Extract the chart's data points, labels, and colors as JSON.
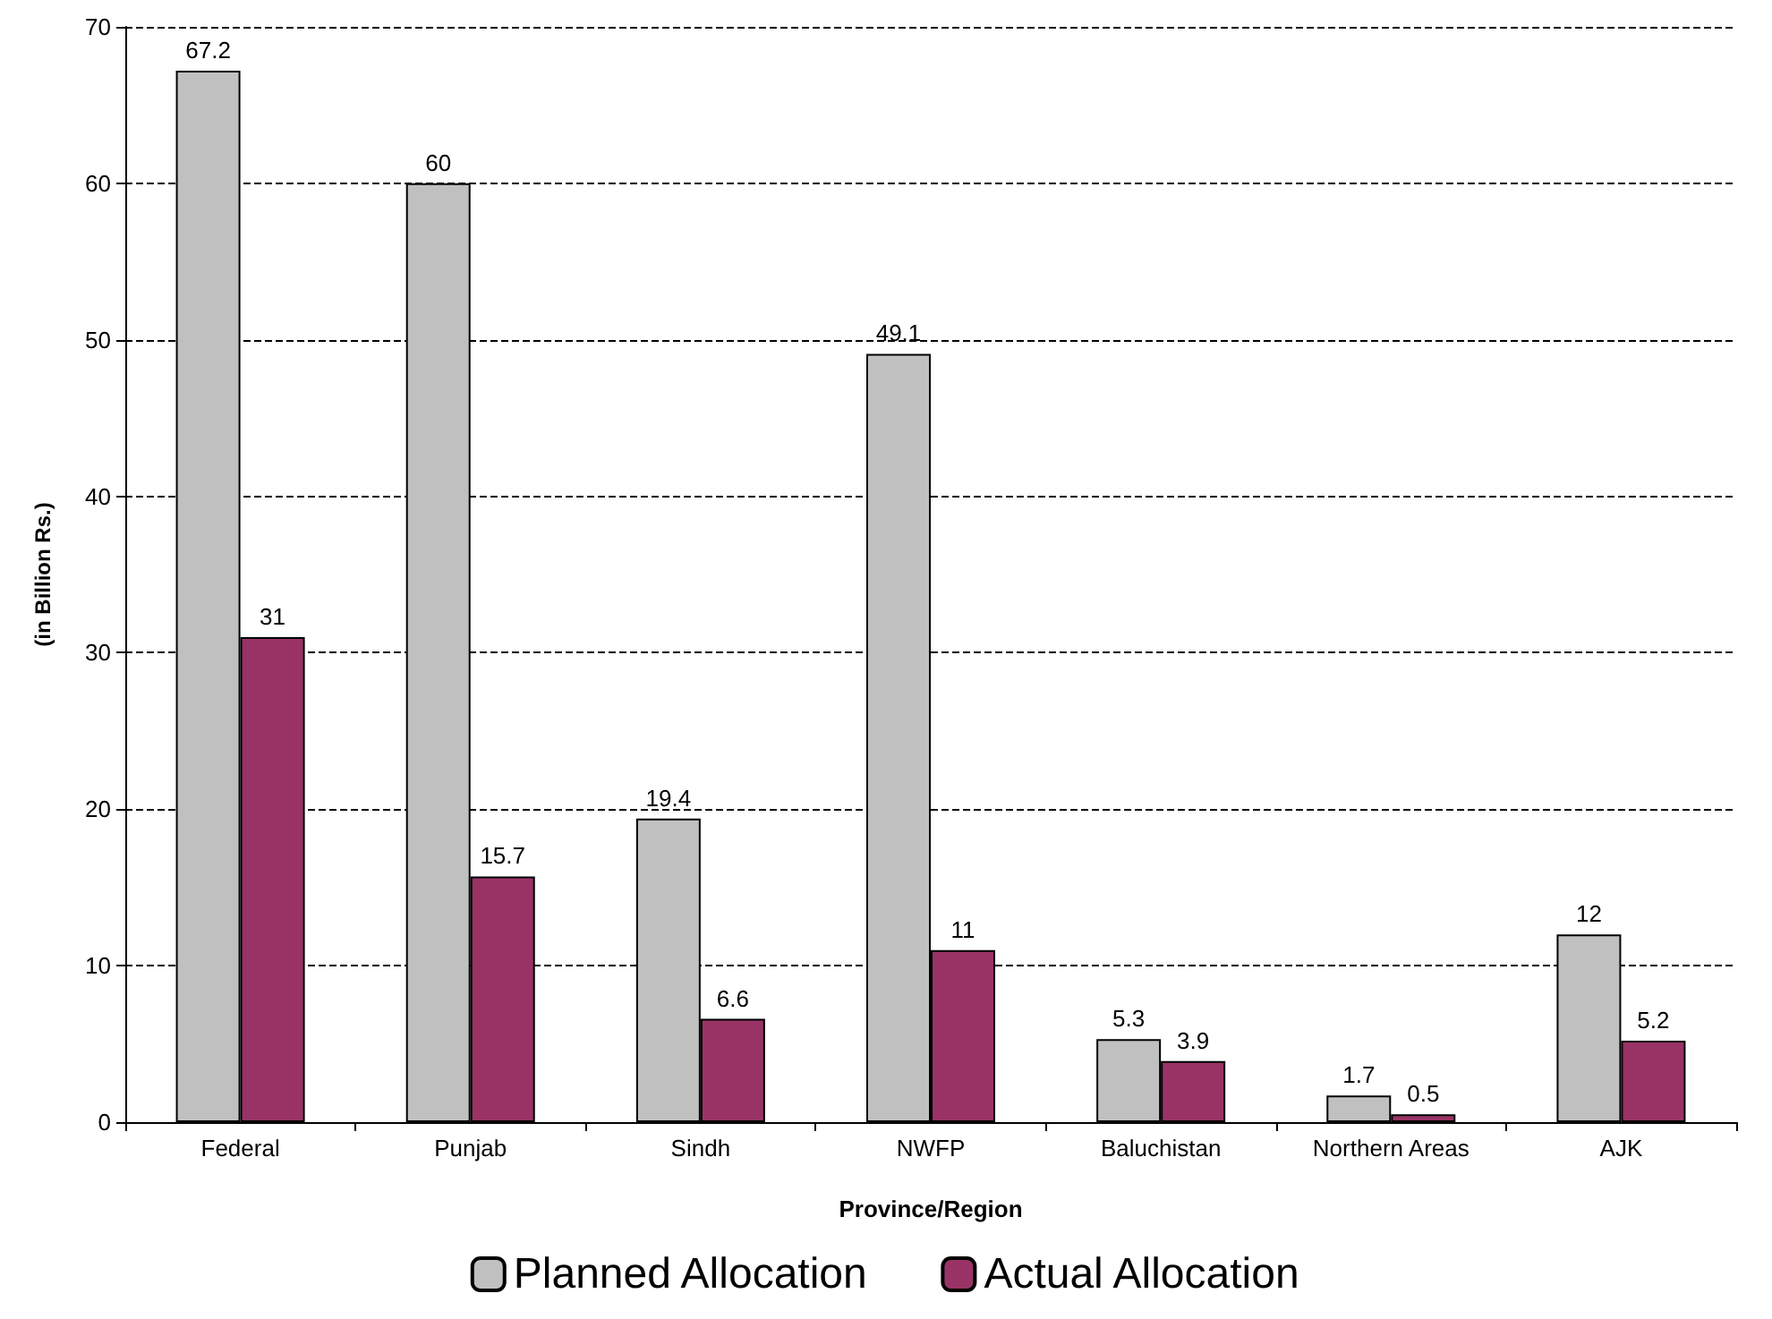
{
  "chart_data": {
    "type": "bar",
    "xlabel": "Province/Region",
    "ylabel": "(in Billion Rs.)",
    "categories": [
      "Federal",
      "Punjab",
      "Sindh",
      "NWFP",
      "Baluchistan",
      "Northern Areas",
      "AJK"
    ],
    "series": [
      {
        "name": "Planned Allocation",
        "color": "#c0c0c0",
        "values": [
          67.2,
          60,
          19.4,
          49.1,
          5.3,
          1.7,
          12
        ]
      },
      {
        "name": "Actual Allocation",
        "color": "#993366",
        "values": [
          31,
          15.7,
          6.6,
          11,
          3.9,
          0.5,
          5.2
        ]
      }
    ],
    "ylim": [
      0,
      70
    ],
    "yticks": [
      0,
      10,
      20,
      30,
      40,
      50,
      60,
      70
    ],
    "grid": "y",
    "legend": "bottom",
    "data_labels": true
  }
}
